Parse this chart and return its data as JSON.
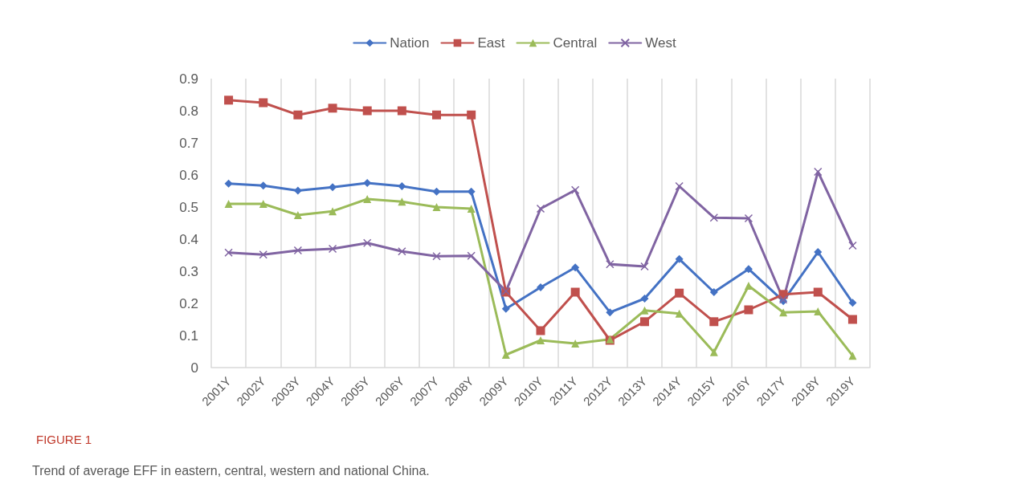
{
  "chart_data": {
    "type": "line",
    "title": "FIGURE 1",
    "annotations": [
      "Trend of average EFF in eastern, central, western and national China."
    ],
    "categories": [
      "2001Y",
      "2002Y",
      "2003Y",
      "2004Y",
      "2005Y",
      "2006Y",
      "2007Y",
      "2008Y",
      "2009Y",
      "2010Y",
      "2011Y",
      "2012Y",
      "2013Y",
      "2014Y",
      "2015Y",
      "2016Y",
      "2017Y",
      "2018Y",
      "2019Y"
    ],
    "series": [
      {
        "name": "Nation",
        "color": "#4472c4",
        "marker": "diamond",
        "values": [
          0.573,
          0.567,
          0.551,
          0.562,
          0.575,
          0.565,
          0.548,
          0.548,
          0.183,
          0.25,
          0.312,
          0.172,
          0.215,
          0.338,
          0.235,
          0.307,
          0.207,
          0.36,
          0.202
        ]
      },
      {
        "name": "East",
        "color": "#c0504d",
        "marker": "square",
        "values": [
          0.833,
          0.825,
          0.787,
          0.808,
          0.8,
          0.8,
          0.787,
          0.787,
          0.235,
          0.115,
          0.235,
          0.085,
          0.143,
          0.232,
          0.143,
          0.18,
          0.228,
          0.235,
          0.15
        ]
      },
      {
        "name": "Central",
        "color": "#9bbb59",
        "marker": "triangle",
        "values": [
          0.51,
          0.51,
          0.475,
          0.487,
          0.525,
          0.517,
          0.5,
          0.495,
          0.04,
          0.085,
          0.075,
          0.088,
          0.178,
          0.168,
          0.048,
          0.255,
          0.172,
          0.175,
          0.037
        ]
      },
      {
        "name": "West",
        "color": "#8064a2",
        "marker": "cross",
        "values": [
          0.358,
          0.352,
          0.365,
          0.37,
          0.388,
          0.362,
          0.347,
          0.348,
          0.238,
          0.495,
          0.553,
          0.322,
          0.315,
          0.565,
          0.467,
          0.465,
          0.212,
          0.61,
          0.38
        ]
      }
    ],
    "ylim": [
      0,
      0.9
    ],
    "yticks": [
      0,
      0.1,
      0.2,
      0.3,
      0.4,
      0.5,
      0.6,
      0.7,
      0.8,
      0.9
    ],
    "grid": "x",
    "legend": "top",
    "line_style": "solid"
  }
}
